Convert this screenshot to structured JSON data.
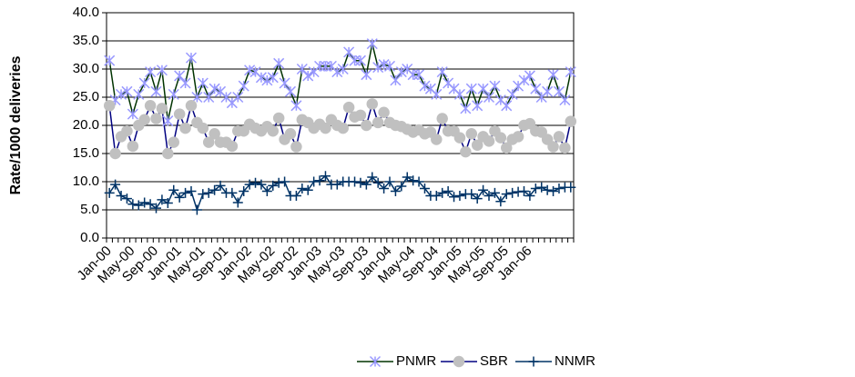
{
  "chart_data": {
    "type": "line",
    "y_label": "Rate/1000 deliveries",
    "categories": [
      "Jan-00",
      null,
      null,
      null,
      "May-00",
      null,
      null,
      null,
      "Sep-00",
      null,
      null,
      null,
      "Jan-01",
      null,
      null,
      null,
      "May-01",
      null,
      null,
      null,
      "Sep-01",
      null,
      null,
      null,
      "Jan-02",
      null,
      null,
      null,
      "May-02",
      null,
      null,
      null,
      "Sep-02",
      null,
      null,
      null,
      "Jan-03",
      null,
      null,
      null,
      "May-03",
      null,
      null,
      null,
      "Sep-03",
      null,
      null,
      null,
      "Jan-04",
      null,
      null,
      null,
      "May-04",
      null,
      null,
      null,
      "Sep-04",
      null,
      null,
      null,
      "Jan-05",
      null,
      null,
      null,
      "May-05",
      null,
      null,
      null,
      "Sep-05",
      null,
      null,
      null,
      "Jan-06",
      null,
      null,
      null,
      null,
      null,
      null,
      null
    ],
    "series": [
      {
        "name": "PNMR",
        "color": "#003300",
        "marker": "star",
        "marker_color": "#9999ff",
        "values": [
          31.5,
          24.5,
          25.5,
          26,
          22,
          25.5,
          27.5,
          29.5,
          26,
          29.8,
          20.8,
          25.5,
          28.8,
          27.5,
          32,
          25,
          27.5,
          25,
          26.5,
          26,
          25,
          24,
          25,
          27,
          29.8,
          29.5,
          28.5,
          28,
          28.5,
          31,
          27.5,
          26,
          23.5,
          30,
          28.8,
          29.5,
          30.5,
          30.5,
          30.5,
          29.5,
          30,
          33,
          31.5,
          31.5,
          29,
          34.5,
          30.3,
          30.8,
          30.5,
          28,
          29.5,
          30,
          29,
          29,
          27,
          26.5,
          25.5,
          29.5,
          27.5,
          26.5,
          25.5,
          23,
          26.5,
          23.5,
          26.5,
          25,
          27,
          24.5,
          23.5,
          25.5,
          27,
          28,
          28.8,
          26.5,
          25,
          26,
          29,
          26,
          24.5,
          29.5
        ]
      },
      {
        "name": "SBR",
        "color": "#000080",
        "marker": "circle",
        "marker_color": "#c0c0c0",
        "values": [
          23.5,
          15,
          18,
          19,
          16.3,
          20,
          21,
          23.5,
          21.2,
          23,
          15,
          17,
          22,
          19.5,
          23.5,
          20.5,
          19.5,
          17,
          18.5,
          17,
          17,
          16.3,
          19,
          19,
          20.2,
          19.5,
          19,
          19.8,
          19,
          21.3,
          17.5,
          18.5,
          16.2,
          21,
          20.5,
          19.5,
          20.2,
          19.5,
          21,
          20,
          19.5,
          23.2,
          21.5,
          21.8,
          20,
          23.8,
          20.5,
          22.3,
          20.5,
          20,
          19.8,
          19.3,
          18.8,
          19.2,
          18.5,
          18.8,
          17.5,
          21.2,
          19,
          19,
          17.8,
          15.3,
          18.5,
          16.5,
          18,
          17.2,
          19,
          17.8,
          16,
          17.5,
          18,
          20,
          20.3,
          19,
          18.8,
          17.5,
          16.2,
          18,
          16,
          20.7
        ]
      },
      {
        "name": "NNMR",
        "color": "#003366",
        "marker": "plus",
        "marker_color": "#003366",
        "values": [
          8,
          9.5,
          7.5,
          7,
          6,
          5.8,
          6.3,
          6,
          5.3,
          6.8,
          6.2,
          8.5,
          7.2,
          8,
          8.3,
          5,
          7.8,
          8,
          8.5,
          9.3,
          8,
          8,
          6.3,
          8.3,
          9.5,
          9.8,
          9.5,
          8.3,
          9.3,
          9.8,
          10,
          7.5,
          7.5,
          8.8,
          8.5,
          10,
          10.2,
          11,
          9.5,
          9.5,
          10,
          10,
          10,
          9.8,
          9.5,
          10.8,
          9.8,
          8.8,
          10,
          8.3,
          9.2,
          10.8,
          10.2,
          10,
          8.8,
          7.5,
          7.5,
          8,
          8.3,
          7.3,
          7.5,
          7.8,
          7.8,
          7,
          8.5,
          7.5,
          8,
          6.5,
          7.8,
          8,
          8.2,
          8.3,
          7.5,
          8.8,
          9,
          8.5,
          8.3,
          8.8,
          9,
          9
        ]
      }
    ],
    "ylim": [
      0,
      40
    ],
    "yticks": [
      {
        "value": 0,
        "label": "0.0"
      },
      {
        "value": 5,
        "label": "5.0"
      },
      {
        "value": 10,
        "label": "10.0"
      },
      {
        "value": 15,
        "label": "15.0"
      },
      {
        "value": 20,
        "label": "20.0"
      },
      {
        "value": 25,
        "label": "25.0"
      },
      {
        "value": 30,
        "label": "30.0"
      },
      {
        "value": 35,
        "label": "35.0"
      },
      {
        "value": 40,
        "label": "40.0"
      }
    ],
    "grid": true,
    "legend": "bottom"
  }
}
